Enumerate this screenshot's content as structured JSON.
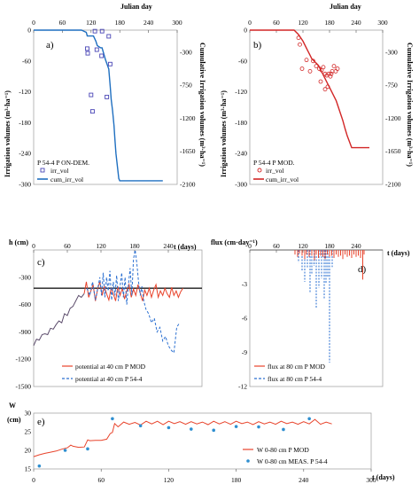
{
  "chart_data": [
    {
      "id": "a",
      "type": "line+scatter",
      "panel_label": "a)",
      "top_label": "Julian day",
      "ylabel": "Irrigation volumes (m³·ha⁻¹)",
      "ylabel_right": "Cumulative Irrigation volumes (m³·ha⁻¹)",
      "annotation": "P 54-4  P ON-DEM.",
      "xlim": [
        0,
        300
      ],
      "ylim": [
        -300,
        0
      ],
      "y2lim": [
        -2100,
        0
      ],
      "x_ticks": [
        "0",
        "60",
        "120",
        "180",
        "240",
        "300"
      ],
      "y_ticks": [
        "0",
        "-60",
        "-120",
        "-180",
        "-240",
        "-300"
      ],
      "y2_ticks": [
        "-300",
        "-750",
        "-1200",
        "-1650",
        "-2100"
      ],
      "legend": [
        "irr_vol",
        "cum_irr_vol"
      ],
      "colors": {
        "scatter": "#4a46b6",
        "line": "#1f6fc0"
      },
      "series": [
        {
          "name": "irr_vol",
          "kind": "scatter",
          "x": [
            128,
            143,
            157,
            112,
            132,
            113,
            142,
            160,
            120,
            153,
            123
          ],
          "y": [
            -2,
            -2,
            -12,
            -36,
            -38,
            -45,
            -50,
            -66,
            -126,
            -130,
            -158
          ]
        },
        {
          "name": "cum_irr_vol",
          "kind": "line",
          "axis": "right",
          "x": [
            0,
            100,
            110,
            112,
            125,
            130,
            133,
            140,
            143,
            150,
            157,
            160,
            162,
            165,
            168,
            170,
            172,
            175,
            178,
            180,
            185,
            190,
            200,
            240,
            270
          ],
          "y": [
            0,
            0,
            -30,
            -80,
            -80,
            -150,
            -210,
            -240,
            -240,
            -400,
            -530,
            -760,
            -940,
            -1100,
            -1300,
            -1500,
            -1680,
            -1850,
            -2020,
            -2050,
            -2050,
            -2050,
            -2050,
            -2050,
            -2050
          ]
        }
      ]
    },
    {
      "id": "b",
      "type": "line+scatter",
      "panel_label": "b)",
      "top_label": "Julian day",
      "ylabel": "Irrigation volumes (m³·ha⁻¹)",
      "ylabel_right": "Cumulative Irrigation volumes (m³·ha⁻¹)",
      "annotation": "P 54-4  P MOD.",
      "xlim": [
        0,
        300
      ],
      "ylim": [
        -300,
        0
      ],
      "y2lim": [
        -2100,
        0
      ],
      "x_ticks": [
        "0",
        "60",
        "120",
        "180",
        "240",
        "300"
      ],
      "y_ticks": [
        "0",
        "-60",
        "-120",
        "-180",
        "-240",
        "-300"
      ],
      "y2_ticks": [
        "-300",
        "-750",
        "-1200",
        "-1650",
        "-2100"
      ],
      "legend": [
        "irr_vol",
        "cum_irr_vol"
      ],
      "colors": {
        "scatter": "#d22626",
        "line": "#d22626"
      },
      "series": [
        {
          "name": "irr_vol",
          "kind": "scatter",
          "x": [
            110,
            113,
            118,
            128,
            136,
            143,
            150,
            157,
            162,
            166,
            170,
            174,
            178,
            182,
            186,
            190,
            194,
            198,
            176,
            170,
            160,
            184
          ],
          "y": [
            -15,
            -28,
            -75,
            -58,
            -80,
            -60,
            -70,
            -75,
            -78,
            -72,
            -85,
            -88,
            -85,
            -90,
            -80,
            -70,
            -80,
            -75,
            -110,
            -115,
            -100,
            -85
          ]
        },
        {
          "name": "cum_irr_vol",
          "kind": "line",
          "axis": "right",
          "x": [
            0,
            100,
            110,
            120,
            130,
            135,
            140,
            145,
            150,
            155,
            160,
            165,
            170,
            175,
            180,
            185,
            190,
            195,
            200,
            205,
            210,
            215,
            220,
            225,
            230,
            270
          ],
          "y": [
            0,
            0,
            -60,
            -150,
            -270,
            -330,
            -390,
            -420,
            -450,
            -480,
            -540,
            -600,
            -660,
            -720,
            -780,
            -840,
            -900,
            -960,
            -1050,
            -1140,
            -1230,
            -1340,
            -1440,
            -1520,
            -1600,
            -1600
          ]
        }
      ]
    },
    {
      "id": "c",
      "type": "line",
      "panel_label": "c)",
      "ylabel": "h (cm)",
      "xlabel": "t (days)",
      "xlim": [
        0,
        300
      ],
      "ylim": [
        -1500,
        0
      ],
      "x_ticks": [
        "0",
        "60",
        "120",
        "180",
        "240",
        "300"
      ],
      "y_ticks": [
        "-300",
        "-600",
        "-900",
        "-1200",
        "-1500"
      ],
      "reference_line": -420,
      "legend": [
        "potential at 40 cm P MOD",
        "potential at 40 cm P 54-4"
      ],
      "colors": {
        "mod": "#e8432b",
        "p544": "#2a6fd1",
        "start": "#5a4a6a",
        "ref": "#000000"
      },
      "series": [
        {
          "name": "start",
          "kind": "line",
          "x": [
            0,
            5,
            10,
            15,
            20,
            25,
            30,
            35,
            40,
            45,
            50,
            55,
            60,
            65,
            70,
            75,
            80,
            85,
            90
          ],
          "y": [
            -1050,
            -980,
            -990,
            -930,
            -920,
            -930,
            -860,
            -870,
            -820,
            -780,
            -800,
            -700,
            -720,
            -640,
            -620,
            -560,
            -500,
            -520,
            -480
          ]
        },
        {
          "name": "potential at 40 cm P MOD",
          "kind": "line",
          "x": [
            90,
            94,
            98,
            102,
            106,
            110,
            114,
            118,
            122,
            126,
            130,
            134,
            138,
            142,
            146,
            150,
            154,
            158,
            162,
            166,
            170,
            174,
            178,
            182,
            186,
            190,
            194,
            198,
            202,
            206,
            210,
            214,
            218,
            222,
            226,
            230,
            234,
            238,
            242,
            246,
            250,
            254,
            258,
            262,
            266
          ],
          "y": [
            -480,
            -350,
            -520,
            -450,
            -380,
            -560,
            -430,
            -350,
            -500,
            -400,
            -480,
            -550,
            -420,
            -480,
            -560,
            -400,
            -500,
            -420,
            -540,
            -450,
            -380,
            -520,
            -430,
            -500,
            -380,
            -470,
            -560,
            -440,
            -500,
            -420,
            -520,
            -440,
            -380,
            -520,
            -450,
            -500,
            -420,
            -480,
            -520,
            -410,
            -500,
            -450,
            -520,
            -460,
            -420
          ]
        },
        {
          "name": "potential at 40 cm P 54-4",
          "kind": "line",
          "x": [
            95,
            100,
            105,
            110,
            115,
            118,
            121,
            124,
            127,
            130,
            133,
            136,
            139,
            142,
            145,
            148,
            151,
            154,
            157,
            160,
            163,
            166,
            169,
            172,
            175,
            178,
            181,
            184,
            187,
            190,
            193,
            196,
            200,
            205,
            210,
            215,
            220,
            225,
            230,
            235,
            240,
            245,
            250,
            255,
            260
          ],
          "y": [
            -420,
            -500,
            -350,
            -550,
            -400,
            -300,
            -500,
            -250,
            -520,
            -300,
            -450,
            -230,
            -550,
            -350,
            -500,
            -280,
            -560,
            -400,
            -250,
            -520,
            -300,
            -600,
            -380,
            -200,
            -500,
            -100,
            0,
            -150,
            -350,
            -500,
            -400,
            -550,
            -650,
            -700,
            -800,
            -750,
            -900,
            -850,
            -1000,
            -950,
            -1050,
            -1100,
            -1130,
            -850,
            -800
          ]
        }
      ]
    },
    {
      "id": "d",
      "type": "line",
      "panel_label": "d)",
      "ylabel": "flux (cm·day⁻¹)",
      "xlabel": "t (days)",
      "xlim": [
        0,
        300
      ],
      "ylim": [
        -12,
        0
      ],
      "x_ticks": [
        "0",
        "60",
        "120",
        "180",
        "240",
        "300"
      ],
      "y_ticks": [
        "-3",
        "-6",
        "-9",
        "-12"
      ],
      "legend": [
        "flux at 80 cm P MOD",
        "flux at 80 cm P 54-4"
      ],
      "colors": {
        "mod": "#e8432b",
        "p544": "#2a6fd1"
      },
      "series": [
        {
          "name": "flux at 80 cm P MOD",
          "kind": "spikes",
          "x": [
            102,
            108,
            112,
            118,
            124,
            128,
            134,
            140,
            146,
            150,
            155,
            160,
            165,
            170,
            175,
            180,
            185,
            190,
            195,
            200,
            205,
            210,
            215,
            220,
            225,
            230,
            235,
            240,
            245,
            250,
            255,
            258
          ],
          "y": [
            -0.4,
            -0.6,
            -0.3,
            -0.5,
            -0.8,
            -0.4,
            -0.6,
            -0.5,
            -0.9,
            -0.4,
            -0.7,
            -0.5,
            -0.6,
            -0.8,
            -0.4,
            -0.6,
            -0.5,
            -0.7,
            -0.4,
            -0.6,
            -0.5,
            -0.8,
            -0.4,
            -0.6,
            -0.5,
            -0.7,
            -0.4,
            -0.6,
            -0.5,
            -0.7,
            -2.6,
            -0.4
          ]
        },
        {
          "name": "flux at 80 cm P 54-4",
          "kind": "spikes",
          "x": [
            110,
            118,
            124,
            130,
            136,
            140,
            145,
            150,
            156,
            162,
            168,
            172,
            176,
            180,
            186
          ],
          "y": [
            -1.1,
            -1.8,
            -2.8,
            -1.6,
            -3.8,
            -2.1,
            -1.4,
            -5.1,
            -3.3,
            -2.5,
            -4.3,
            -3.0,
            -2.4,
            -9.9,
            -1.5
          ]
        }
      ]
    },
    {
      "id": "e",
      "type": "line+scatter",
      "panel_label": "e)",
      "ylabel": "W (cm)",
      "xlabel": "t (days)",
      "xlim": [
        0,
        300
      ],
      "ylim": [
        15,
        30
      ],
      "x_ticks": [
        "0",
        "60",
        "120",
        "180",
        "240",
        "300"
      ],
      "y_ticks": [
        "15",
        "20",
        "25",
        "30"
      ],
      "legend": [
        "W 0-80 cm  P MOD",
        "W 0-80 cm MEAS. P 54-4"
      ],
      "colors": {
        "line": "#e8432b",
        "scatter": "#2f8fd0"
      },
      "series": [
        {
          "name": "W 0-80 cm  P MOD",
          "kind": "line",
          "x": [
            0,
            5,
            10,
            15,
            20,
            25,
            30,
            33,
            35,
            40,
            45,
            48,
            50,
            55,
            60,
            65,
            68,
            70,
            72,
            75,
            80,
            85,
            90,
            95,
            100,
            105,
            110,
            115,
            120,
            125,
            130,
            135,
            140,
            145,
            150,
            155,
            160,
            165,
            170,
            175,
            180,
            185,
            190,
            195,
            200,
            205,
            210,
            215,
            220,
            225,
            230,
            235,
            240,
            245,
            250,
            255,
            260,
            265
          ],
          "y": [
            18.3,
            18.8,
            19.2,
            19.5,
            19.8,
            20.3,
            20.7,
            21.4,
            21.1,
            20.8,
            20.9,
            22.8,
            22.6,
            22.7,
            22.7,
            23.0,
            24.5,
            24.8,
            27.2,
            26.3,
            27.6,
            27.0,
            27.5,
            26.8,
            27.8,
            27.1,
            27.8,
            26.9,
            27.8,
            27.2,
            27.7,
            27.0,
            27.7,
            27.1,
            27.6,
            26.9,
            27.8,
            27.1,
            27.7,
            27.0,
            27.8,
            27.2,
            27.6,
            26.9,
            27.7,
            27.1,
            27.6,
            27.0,
            27.8,
            27.2,
            27.6,
            27.0,
            27.7,
            27.1,
            28.3,
            27.0,
            27.6,
            27.1
          ]
        },
        {
          "name": "W 0-80 cm MEAS. P 54-4",
          "kind": "scatter",
          "x": [
            5,
            28,
            48,
            70,
            95,
            120,
            140,
            160,
            180,
            200,
            222,
            245
          ],
          "y": [
            15.8,
            20.0,
            20.4,
            28.5,
            26.6,
            26.1,
            25.7,
            25.4,
            26.4,
            26.3,
            25.6,
            28.5
          ]
        }
      ]
    }
  ]
}
